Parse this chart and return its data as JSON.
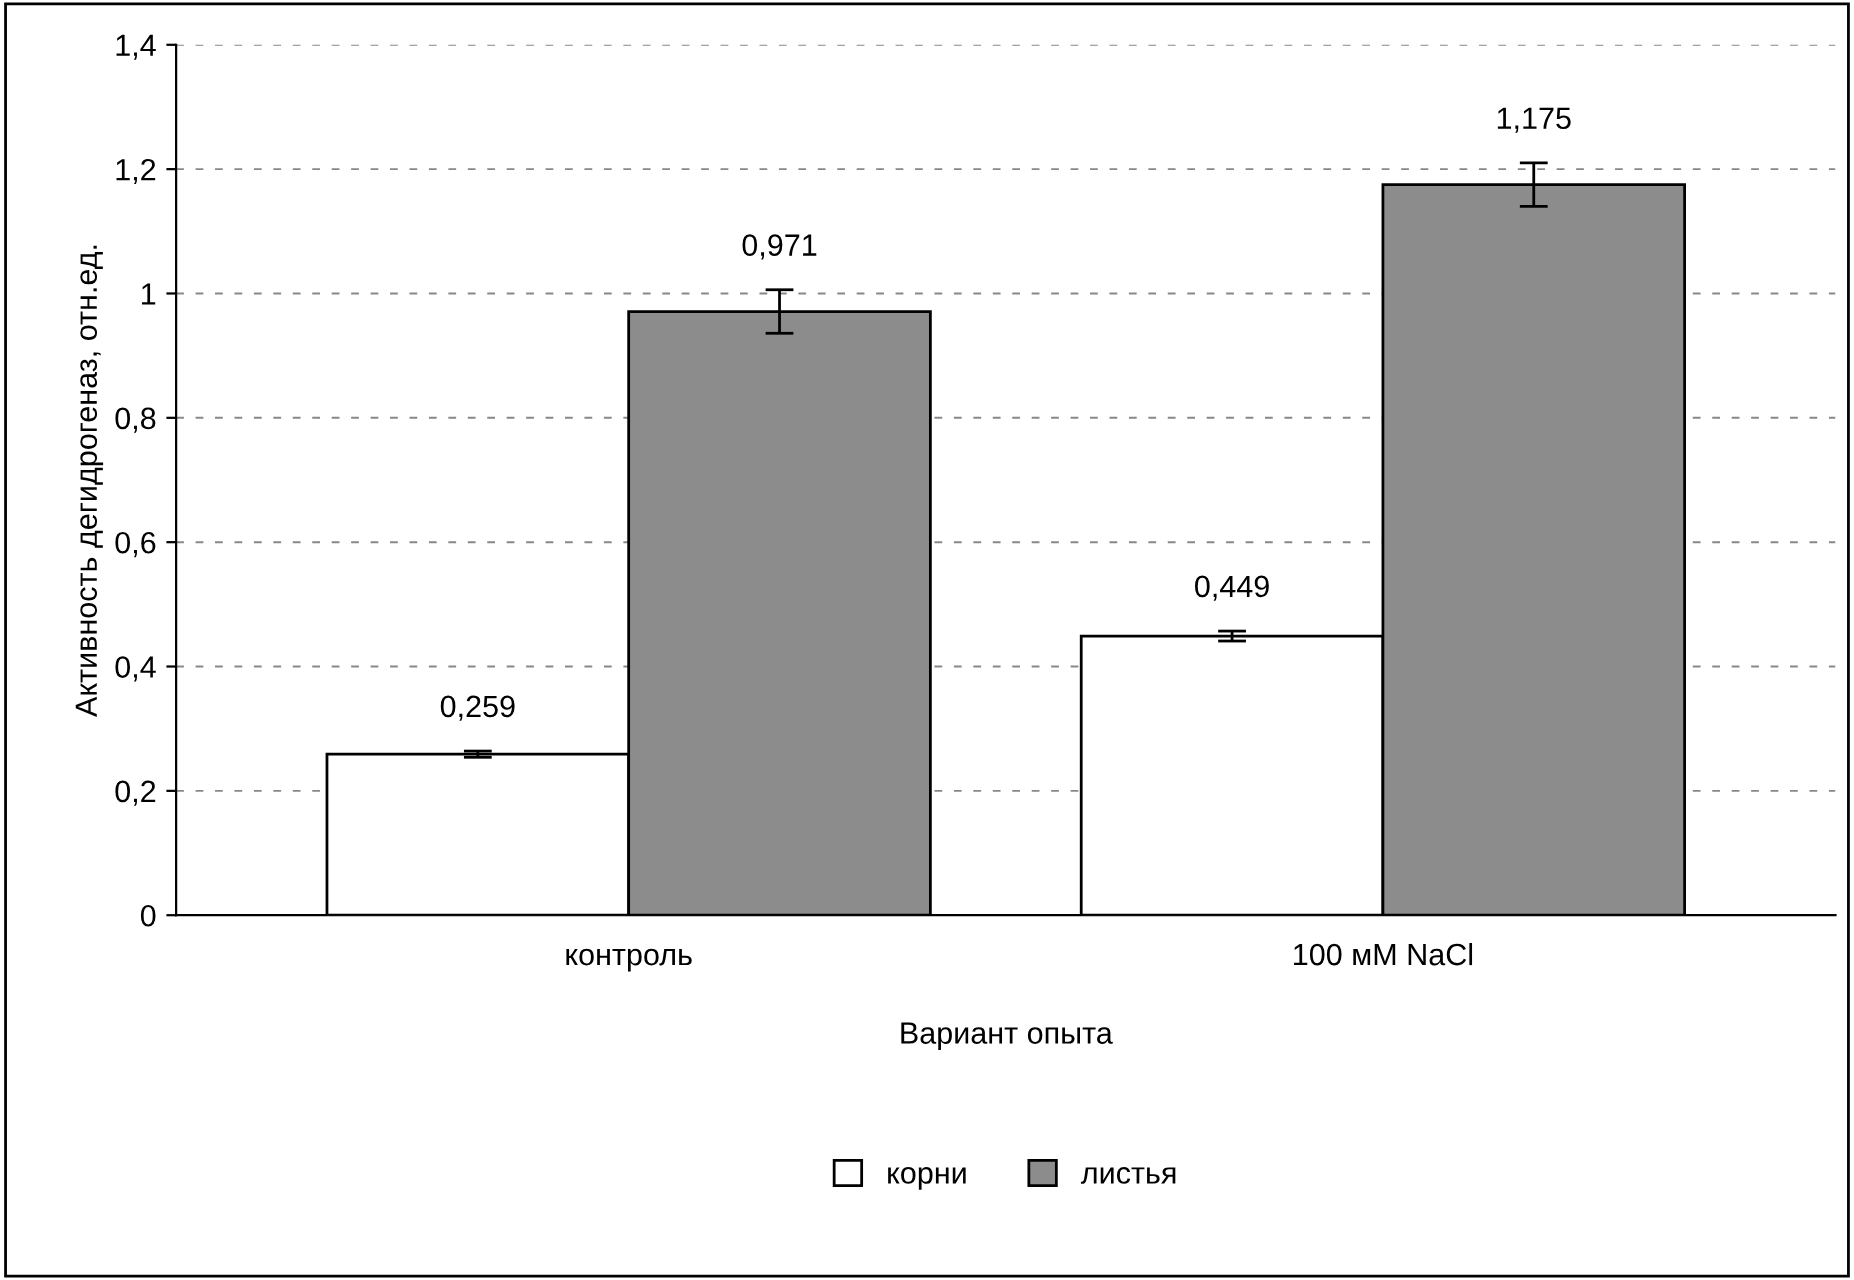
{
  "chart_data": {
    "type": "bar",
    "xlabel": "Вариант опыта",
    "ylabel": "Активность дегидрогеназ, отн.ед.",
    "categories": [
      "контроль",
      "100 мМ NaCl"
    ],
    "series": [
      {
        "name": "корни",
        "color": "#ffffff",
        "values": [
          0.259,
          0.449
        ],
        "errors": [
          0.005,
          0.008
        ],
        "value_labels": [
          "0,259",
          "0,449"
        ]
      },
      {
        "name": "листья",
        "color": "#8c8c8c",
        "values": [
          0.971,
          1.175
        ],
        "errors": [
          0.035,
          0.035
        ],
        "value_labels": [
          "0,971",
          "1,175"
        ]
      }
    ],
    "ylim": [
      0,
      1.4
    ],
    "yticks": [
      0,
      {
        "value": 0.2,
        "label": "0,2"
      },
      {
        "value": 0.4,
        "label": "0,4"
      },
      {
        "value": 0.6,
        "label": "0,6"
      },
      {
        "value": 0.8,
        "label": "0,8"
      },
      1,
      {
        "value": 1.2,
        "label": "1,2"
      },
      {
        "value": 1.4,
        "label": "1,4"
      }
    ],
    "grid": "y",
    "legend": "bottom"
  }
}
